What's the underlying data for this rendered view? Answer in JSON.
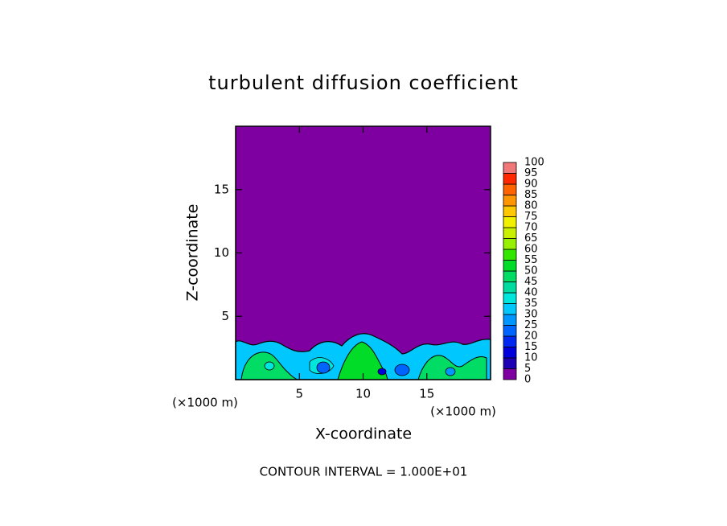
{
  "chart_data": {
    "type": "contour",
    "title": "turbulent diffusion coefficient",
    "x_label": "X-coordinate",
    "y_label": "Z-coordinate",
    "x_unit_label": "(×1000 m)",
    "y_unit_label": "(×1000 m)",
    "note": "CONTOUR INTERVAL = 1.000E+01",
    "xlim": [
      0,
      20
    ],
    "ylim": [
      0,
      20
    ],
    "xticks": [
      5,
      10,
      15
    ],
    "yticks": [
      5,
      10,
      15
    ],
    "colorbar": {
      "levels": [
        0,
        5,
        10,
        15,
        20,
        25,
        30,
        35,
        40,
        45,
        50,
        55,
        60,
        65,
        70,
        75,
        80,
        85,
        90,
        95,
        100
      ],
      "colors": [
        "#7f00a0",
        "#1e00b4",
        "#0000dc",
        "#0028f0",
        "#0064ff",
        "#0096ff",
        "#00c8ff",
        "#00e6dc",
        "#00dca0",
        "#00dc64",
        "#00dc28",
        "#32e600",
        "#96f000",
        "#c8f000",
        "#f0f000",
        "#ffc800",
        "#ff9600",
        "#ff6400",
        "#ff2800",
        "#f07878"
      ]
    }
  }
}
